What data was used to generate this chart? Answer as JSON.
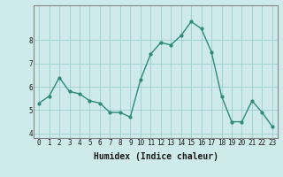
{
  "x": [
    0,
    1,
    2,
    3,
    4,
    5,
    6,
    7,
    8,
    9,
    10,
    11,
    12,
    13,
    14,
    15,
    16,
    17,
    18,
    19,
    20,
    21,
    22,
    23
  ],
  "y": [
    5.3,
    5.6,
    6.4,
    5.8,
    5.7,
    5.4,
    5.3,
    4.9,
    4.9,
    4.7,
    6.3,
    7.4,
    7.9,
    7.8,
    8.2,
    8.8,
    8.5,
    7.5,
    5.6,
    4.5,
    4.5,
    5.4,
    4.9,
    4.3
  ],
  "line_color": "#2e8b7a",
  "marker": "o",
  "marker_size": 2,
  "linewidth": 1.0,
  "background_color": "#ceeaea",
  "grid_color": "#9ecece",
  "xlabel": "Humidex (Indice chaleur)",
  "xlabel_fontsize": 7,
  "ylim": [
    3.8,
    9.5
  ],
  "xlim": [
    -0.5,
    23.5
  ],
  "yticks": [
    4,
    5,
    6,
    7,
    8
  ],
  "xticks": [
    0,
    1,
    2,
    3,
    4,
    5,
    6,
    7,
    8,
    9,
    10,
    11,
    12,
    13,
    14,
    15,
    16,
    17,
    18,
    19,
    20,
    21,
    22,
    23
  ],
  "tick_fontsize": 5.5,
  "xlabel_fontweight": "bold"
}
